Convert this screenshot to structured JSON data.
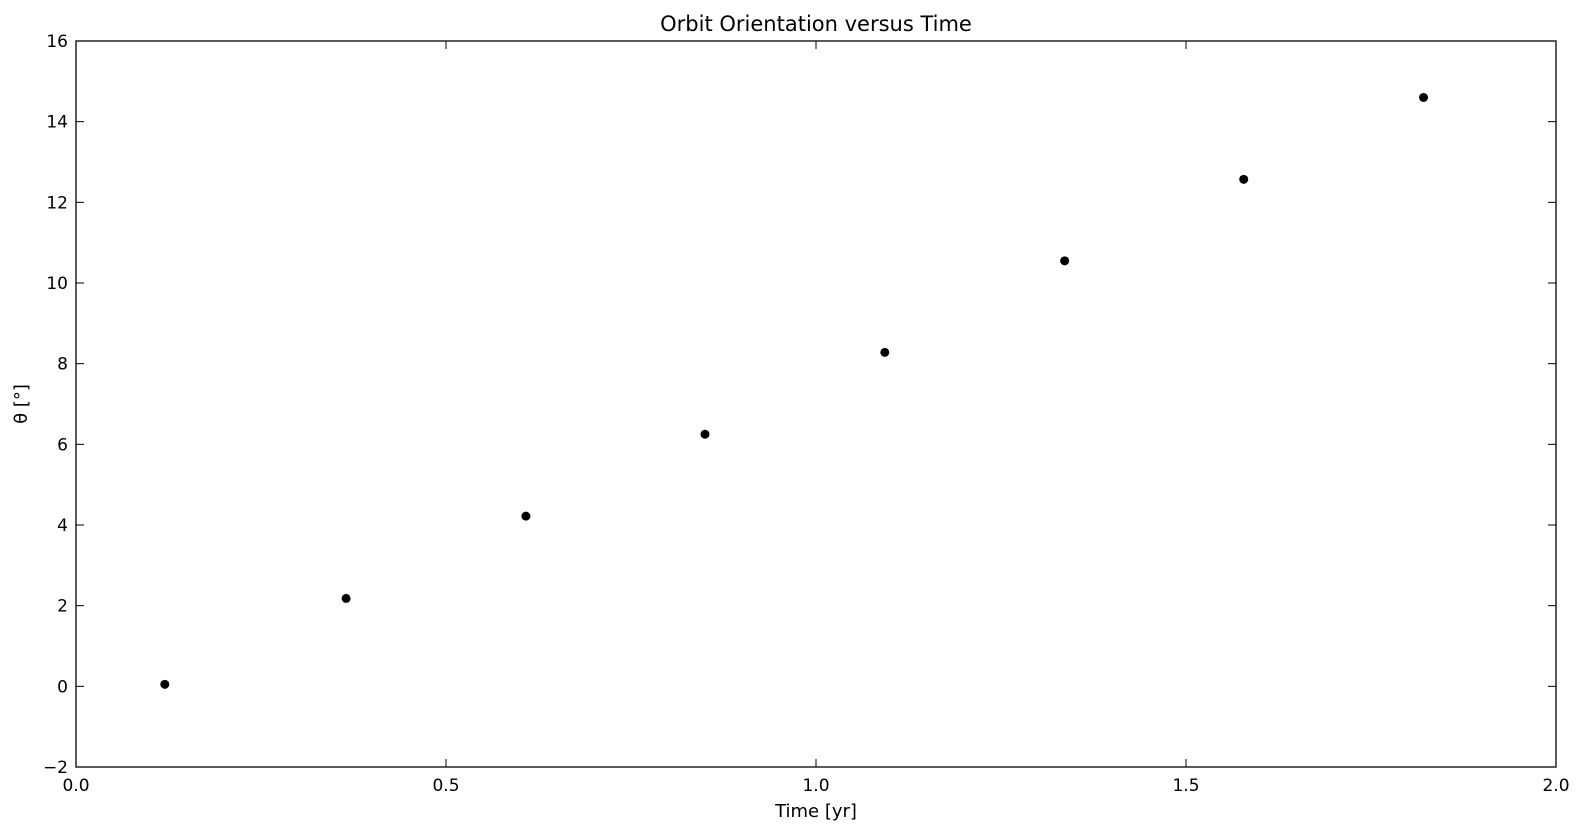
{
  "chart_data": {
    "type": "scatter",
    "title": "Orbit Orientation versus Time",
    "xlabel": "Time [yr]",
    "ylabel": "θ [°]",
    "xlim": [
      0.0,
      2.0
    ],
    "ylim": [
      -2,
      16
    ],
    "xticks": [
      0.0,
      0.5,
      1.0,
      1.5,
      2.0
    ],
    "xtick_labels": [
      "0.0",
      "0.5",
      "1.0",
      "1.5",
      "2.0"
    ],
    "yticks": [
      -2,
      0,
      2,
      4,
      6,
      8,
      10,
      12,
      14,
      16
    ],
    "ytick_labels": [
      "−2",
      "0",
      "2",
      "4",
      "6",
      "8",
      "10",
      "12",
      "14",
      "16"
    ],
    "grid": false,
    "legend": "none",
    "marker_color": "#000000",
    "series": [
      {
        "x": [
          0.12,
          0.365,
          0.608,
          0.85,
          1.093,
          1.336,
          1.578,
          1.821
        ],
        "y": [
          0.05,
          2.18,
          4.22,
          6.25,
          8.28,
          10.55,
          12.57,
          14.6
        ]
      }
    ]
  }
}
